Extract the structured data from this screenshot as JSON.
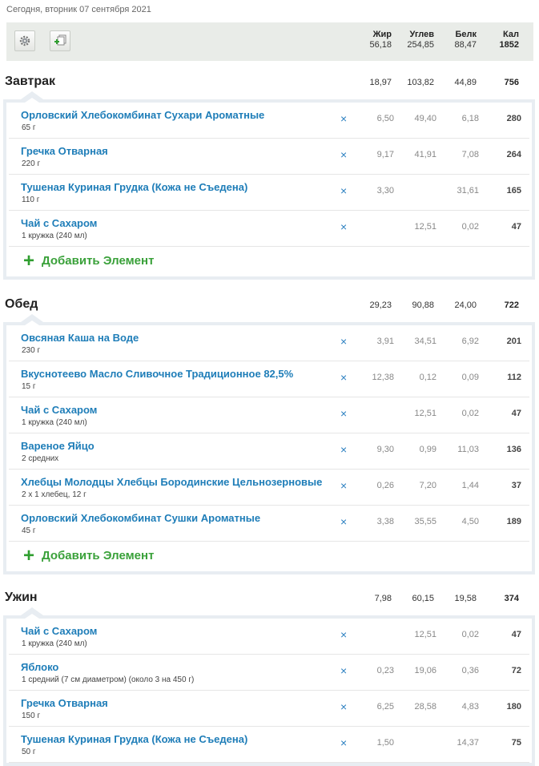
{
  "header": {
    "date": "Сегодня, вторник 07 сентября 2021",
    "icons": {
      "settings": "gear-icon",
      "add": "add-copy-icon"
    },
    "columns": {
      "fat": "Жир",
      "carbs": "Углев",
      "protein": "Белк",
      "kcal": "Кал"
    },
    "totals": {
      "fat": "56,18",
      "carbs": "254,85",
      "protein": "88,47",
      "kcal": "1852"
    }
  },
  "add_label": "Добавить Элемент",
  "meals": [
    {
      "name": "Завтрак",
      "totals": {
        "fat": "18,97",
        "carbs": "103,82",
        "protein": "44,89",
        "kcal": "756"
      },
      "items": [
        {
          "name": "Орловский Хлебокомбинат Сухари Ароматные",
          "portion": "65 г",
          "fat": "6,50",
          "carbs": "49,40",
          "protein": "6,18",
          "kcal": "280"
        },
        {
          "name": "Гречка Отварная",
          "portion": "220 г",
          "fat": "9,17",
          "carbs": "41,91",
          "protein": "7,08",
          "kcal": "264"
        },
        {
          "name": "Тушеная Куриная Грудка (Кожа не Съедена)",
          "portion": "110 г",
          "fat": "3,30",
          "carbs": "",
          "protein": "31,61",
          "kcal": "165"
        },
        {
          "name": "Чай с Сахаром",
          "portion": "1 кружка (240 мл)",
          "fat": "",
          "carbs": "12,51",
          "protein": "0,02",
          "kcal": "47"
        }
      ]
    },
    {
      "name": "Обед",
      "totals": {
        "fat": "29,23",
        "carbs": "90,88",
        "protein": "24,00",
        "kcal": "722"
      },
      "items": [
        {
          "name": "Овсяная Каша на Воде",
          "portion": "230 г",
          "fat": "3,91",
          "carbs": "34,51",
          "protein": "6,92",
          "kcal": "201"
        },
        {
          "name": "Вкуснотеево Масло Сливочное Традиционное 82,5%",
          "portion": "15 г",
          "fat": "12,38",
          "carbs": "0,12",
          "protein": "0,09",
          "kcal": "112"
        },
        {
          "name": "Чай с Сахаром",
          "portion": "1 кружка (240 мл)",
          "fat": "",
          "carbs": "12,51",
          "protein": "0,02",
          "kcal": "47"
        },
        {
          "name": "Вареное Яйцо",
          "portion": "2 средних",
          "fat": "9,30",
          "carbs": "0,99",
          "protein": "11,03",
          "kcal": "136"
        },
        {
          "name": "Хлебцы Молодцы Хлебцы Бородинские Цельнозерновые",
          "portion": "2 x 1 хлебец, 12 г",
          "fat": "0,26",
          "carbs": "7,20",
          "protein": "1,44",
          "kcal": "37"
        },
        {
          "name": "Орловский Хлебокомбинат Сушки Ароматные",
          "portion": "45 г",
          "fat": "3,38",
          "carbs": "35,55",
          "protein": "4,50",
          "kcal": "189"
        }
      ]
    },
    {
      "name": "Ужин",
      "totals": {
        "fat": "7,98",
        "carbs": "60,15",
        "protein": "19,58",
        "kcal": "374"
      },
      "items": [
        {
          "name": "Чай с Сахаром",
          "portion": "1 кружка (240 мл)",
          "fat": "",
          "carbs": "12,51",
          "protein": "0,02",
          "kcal": "47"
        },
        {
          "name": "Яблоко",
          "portion": "1 средний (7 см диаметром) (около 3 на 450 г)",
          "fat": "0,23",
          "carbs": "19,06",
          "protein": "0,36",
          "kcal": "72"
        },
        {
          "name": "Гречка Отварная",
          "portion": "150 г",
          "fat": "6,25",
          "carbs": "28,58",
          "protein": "4,83",
          "kcal": "180"
        },
        {
          "name": "Тушеная Куриная Грудка (Кожа не Съедена)",
          "portion": "50 г",
          "fat": "1,50",
          "carbs": "",
          "protein": "14,37",
          "kcal": "75"
        }
      ]
    }
  ]
}
